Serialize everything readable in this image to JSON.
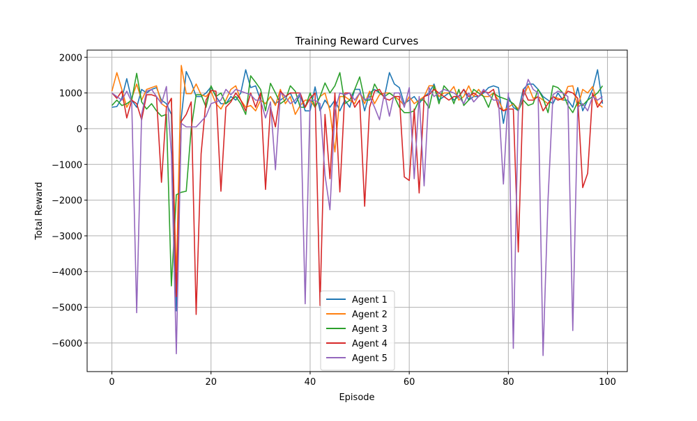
{
  "chart_data": {
    "type": "line",
    "title": "Training Reward Curves",
    "xlabel": "Episode",
    "ylabel": "Total Reward",
    "xlim": [
      -5,
      104
    ],
    "ylim": [
      -6800,
      2200
    ],
    "xticks": [
      0,
      20,
      40,
      60,
      80,
      100
    ],
    "yticks": [
      -6000,
      -5000,
      -4000,
      -3000,
      -2000,
      -1000,
      0,
      1000,
      2000
    ],
    "xtick_labels": [
      "0",
      "20",
      "40",
      "60",
      "80",
      "100"
    ],
    "ytick_labels": [
      "−6000",
      "−5000",
      "−4000",
      "−3000",
      "−2000",
      "−1000",
      "0",
      "1000",
      "2000"
    ],
    "grid": true,
    "legend_position": "lower-center",
    "series": [
      {
        "name": "Agent 1",
        "color": "#1f77b4",
        "values": [
          600,
          620,
          850,
          1400,
          800,
          600,
          1100,
          1000,
          1100,
          1150,
          800,
          700,
          400,
          -5100,
          300,
          1600,
          1300,
          900,
          900,
          1000,
          1170,
          900,
          700,
          700,
          900,
          800,
          1000,
          1650,
          1150,
          1200,
          800,
          700,
          900,
          700,
          800,
          900,
          1000,
          700,
          950,
          500,
          500,
          1170,
          500,
          800,
          600,
          800,
          500,
          800,
          600,
          1100,
          1100,
          500,
          1000,
          1100,
          1000,
          900,
          1570,
          1250,
          1150,
          700,
          800,
          900,
          700,
          900,
          1000,
          1250,
          800,
          900,
          1000,
          800,
          900,
          1100,
          800,
          900,
          900,
          1000,
          1150,
          1200,
          1150,
          150,
          900,
          600,
          500,
          1100,
          1250,
          1250,
          1100,
          900,
          800,
          700,
          1000,
          800,
          800,
          600,
          1150,
          500,
          800,
          1100,
          1650,
          700
        ]
      },
      {
        "name": "Agent 2",
        "color": "#ff7f0e",
        "values": [
          1050,
          1570,
          1100,
          600,
          850,
          1250,
          800,
          1100,
          1150,
          1200,
          700,
          600,
          850,
          -4200,
          1770,
          980,
          980,
          1250,
          950,
          900,
          1050,
          700,
          550,
          800,
          1100,
          1200,
          800,
          600,
          650,
          500,
          800,
          700,
          900,
          650,
          1100,
          700,
          900,
          400,
          650,
          800,
          800,
          600,
          900,
          1000,
          500,
          -650,
          900,
          900,
          800,
          700,
          1000,
          700,
          1050,
          700,
          950,
          1000,
          1000,
          900,
          800,
          650,
          900,
          700,
          800,
          900,
          1200,
          1200,
          900,
          1000,
          1000,
          1180,
          800,
          900,
          1200,
          900,
          1100,
          900,
          900,
          1000,
          800,
          500,
          600,
          700,
          550,
          900,
          1200,
          850,
          900,
          800,
          700,
          900,
          850,
          800,
          1180,
          1200,
          600,
          1100,
          1000,
          1180,
          700,
          600
        ]
      },
      {
        "name": "Agent 3",
        "color": "#2ca02c",
        "values": [
          650,
          800,
          650,
          700,
          800,
          1550,
          750,
          550,
          700,
          500,
          350,
          400,
          -4400,
          -1850,
          -1780,
          -1750,
          0,
          950,
          950,
          600,
          1200,
          900,
          1000,
          700,
          800,
          900,
          700,
          400,
          1480,
          1300,
          1100,
          500,
          1270,
          1000,
          700,
          800,
          1200,
          1050,
          600,
          600,
          1000,
          600,
          900,
          1280,
          1000,
          1200,
          1570,
          700,
          800,
          1100,
          1450,
          800,
          800,
          1250,
          1000,
          900,
          1000,
          900,
          600,
          450,
          450,
          500,
          800,
          800,
          580,
          1200,
          700,
          1200,
          1050,
          700,
          1100,
          650,
          800,
          1100,
          1000,
          900,
          600,
          1000,
          900,
          850,
          800,
          700,
          500,
          800,
          650,
          700,
          1100,
          850,
          450,
          1200,
          1150,
          1000,
          650,
          450,
          750,
          650,
          800,
          900,
          1000,
          1200
        ]
      },
      {
        "name": "Agent 4",
        "color": "#d62728",
        "values": [
          1000,
          850,
          1050,
          300,
          800,
          700,
          250,
          950,
          950,
          900,
          -1500,
          600,
          850,
          -4700,
          200,
          400,
          750,
          -5200,
          -700,
          800,
          1070,
          1050,
          -1750,
          600,
          750,
          1000,
          800,
          500,
          1000,
          600,
          1000,
          -1700,
          600,
          50,
          1050,
          900,
          1000,
          1000,
          1000,
          600,
          850,
          1000,
          -4950,
          400,
          -1400,
          1000,
          -1770,
          1000,
          1000,
          600,
          800,
          -2170,
          600,
          1050,
          1100,
          850,
          800,
          900,
          900,
          -1350,
          -1450,
          550,
          -1800,
          900,
          950,
          1100,
          1000,
          900,
          800,
          900,
          900,
          1100,
          900,
          1000,
          900,
          1050,
          1000,
          1100,
          600,
          500,
          550,
          550,
          -3450,
          1100,
          800,
          800,
          900,
          500,
          700,
          900,
          800,
          850,
          1050,
          1000,
          850,
          -1650,
          -1250,
          1000,
          600,
          800
        ]
      },
      {
        "name": "Agent 5",
        "color": "#9467bd",
        "values": [
          1000,
          900,
          800,
          1050,
          750,
          -5150,
          400,
          1050,
          1100,
          900,
          700,
          1180,
          -700,
          -6300,
          150,
          50,
          50,
          50,
          200,
          350,
          700,
          750,
          800,
          1100,
          950,
          1100,
          1050,
          1000,
          950,
          800,
          800,
          300,
          750,
          -1150,
          1000,
          900,
          700,
          800,
          1000,
          -4900,
          800,
          800,
          700,
          -1300,
          -2270,
          500,
          1000,
          950,
          1000,
          800,
          1000,
          800,
          900,
          600,
          250,
          1000,
          350,
          1000,
          1000,
          600,
          1150,
          -1400,
          900,
          -1600,
          1150,
          900,
          1000,
          1100,
          1050,
          1000,
          900,
          700,
          1000,
          750,
          900,
          1100,
          950,
          800,
          800,
          -1550,
          1000,
          -6150,
          500,
          900,
          1380,
          1100,
          1000,
          -6350,
          -2000,
          950,
          1050,
          1000,
          900,
          -5650,
          600,
          700,
          500,
          900,
          800,
          900
        ]
      }
    ]
  }
}
